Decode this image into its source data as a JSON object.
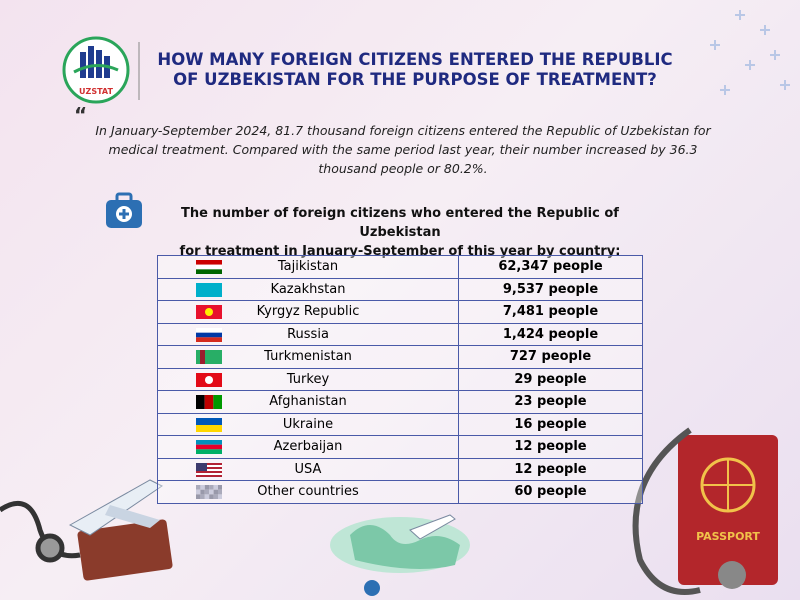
{
  "header": {
    "logo_text": "UZSTAT",
    "title_lines": [
      "HOW MANY FOREIGN CITIZENS ENTERED THE REPUBLIC",
      "OF UZBEKISTAN FOR THE PURPOSE OF TREATMENT?"
    ]
  },
  "intro": "In January-September 2024, 81.7 thousand foreign citizens entered the Republic of Uzbekistan for medical treatment. Compared with the same period last year, their number increased by 36.3 thousand people or 80.2%.",
  "table": {
    "caption_lines": [
      "The number of foreign citizens who entered the Republic of Uzbekistan",
      "for treatment in January-September of this year by country:"
    ],
    "rows": [
      [
        "Tajikistan",
        "62,347 people"
      ],
      [
        "Kazakhstan",
        "9,537 people"
      ],
      [
        "Kyrgyz Republic",
        "7,481 people"
      ],
      [
        "Russia",
        "1,424 people"
      ],
      [
        "Turkmenistan",
        "727 people"
      ],
      [
        "Turkey",
        "29 people"
      ],
      [
        "Afghanistan",
        "23 people"
      ],
      [
        "Ukraine",
        "16 people"
      ],
      [
        "Azerbaijan",
        "12 people"
      ],
      [
        "USA",
        "12 people"
      ],
      [
        "Other countries",
        "60 people"
      ]
    ]
  },
  "decorations": {
    "passport_label": "PASSPORT"
  }
}
